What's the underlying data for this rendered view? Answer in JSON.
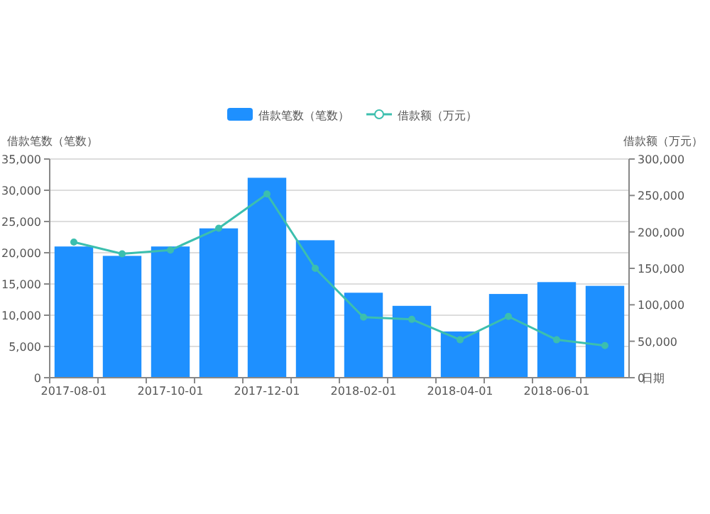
{
  "chart_data": {
    "type": "bar",
    "categories": [
      "2017-08-01",
      null,
      "2017-10-01",
      null,
      "2017-12-01",
      null,
      "2018-02-01",
      null,
      "2018-04-01",
      null,
      "2018-06-01",
      null
    ],
    "series": [
      {
        "name": "借款笔数（笔数）",
        "color": "#1e90ff",
        "values": [
          21000,
          19500,
          21000,
          23900,
          32000,
          22000,
          13600,
          11500,
          7400,
          13400,
          15300,
          14700
        ]
      },
      {
        "name": "借款额（万元）",
        "type": "line",
        "axis": "y2",
        "color": "#3cbfae",
        "values": [
          186000,
          170000,
          175000,
          205000,
          252000,
          150000,
          83000,
          80000,
          52000,
          84000,
          52000,
          44000
        ]
      }
    ],
    "ylabel": "借款笔数（笔数）",
    "y2label": "借款额（万元）",
    "xlabel": "日期",
    "ylim": [
      0,
      35000
    ],
    "yticks": [
      0,
      {
        "value": 5000,
        "label": "5,000"
      },
      {
        "value": 10000,
        "label": "10,000"
      },
      {
        "value": 15000,
        "label": "15,000"
      },
      {
        "value": 20000,
        "label": "20,000"
      },
      {
        "value": 25000,
        "label": "25,000"
      },
      {
        "value": 30000,
        "label": "30,000"
      },
      {
        "value": 35000,
        "label": "35,000"
      }
    ],
    "y2lim": [
      0,
      300000
    ],
    "y2ticks": [
      0,
      {
        "value": 50000,
        "label": "50,000"
      },
      {
        "value": 100000,
        "label": "100,000"
      },
      {
        "value": 150000,
        "label": "150,000"
      },
      {
        "value": 200000,
        "label": "200,000"
      },
      {
        "value": 250000,
        "label": "250,000"
      },
      {
        "value": 300000,
        "label": "300,000"
      }
    ],
    "grid": "y",
    "legend": "top",
    "marker": "circle"
  }
}
